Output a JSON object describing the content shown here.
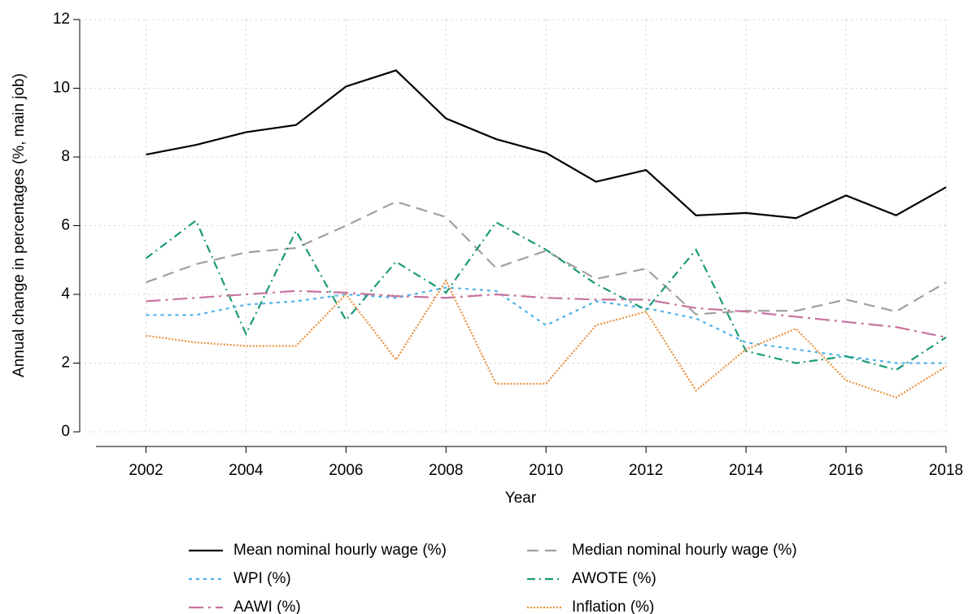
{
  "chart_data": {
    "type": "line",
    "x_label": "Year",
    "y_label": "Annual change in percentages (%, main job)",
    "x": [
      2002,
      2003,
      2004,
      2005,
      2006,
      2007,
      2008,
      2009,
      2010,
      2011,
      2012,
      2013,
      2014,
      2015,
      2016,
      2017,
      2018
    ],
    "xlim": [
      2001,
      2018
    ],
    "xticks": [
      2002,
      2004,
      2006,
      2008,
      2010,
      2012,
      2014,
      2016,
      2018
    ],
    "ylim": [
      0,
      12
    ],
    "yticks": [
      0,
      2,
      4,
      6,
      8,
      10,
      12
    ],
    "grid": true,
    "legend": "bottom",
    "series": [
      {
        "name": "Mean nominal hourly wage (%)",
        "color": "#000000",
        "dash": "solid",
        "values": [
          8.07,
          8.35,
          8.72,
          8.93,
          10.05,
          10.52,
          9.12,
          8.52,
          8.12,
          7.28,
          7.62,
          6.3,
          6.37,
          6.22,
          6.88,
          6.3,
          7.12
        ]
      },
      {
        "name": "Median nominal hourly wage (%)",
        "color": "#a0a0a0",
        "dash": "dashed",
        "values": [
          4.35,
          4.88,
          5.22,
          5.35,
          6.0,
          6.7,
          6.25,
          4.77,
          5.27,
          4.45,
          4.75,
          3.42,
          3.52,
          3.52,
          3.85,
          3.5,
          4.35
        ]
      },
      {
        "name": "WPI (%)",
        "color": "#4fb3e8",
        "dash": "dotted",
        "values": [
          3.4,
          3.4,
          3.7,
          3.8,
          4.0,
          3.9,
          4.2,
          4.1,
          3.1,
          3.8,
          3.6,
          3.3,
          2.6,
          2.4,
          2.2,
          2.0,
          2.0
        ]
      },
      {
        "name": "AWOTE (%)",
        "color": "#1a9a7a",
        "dash": "dashdot",
        "values": [
          5.05,
          6.15,
          2.85,
          5.85,
          3.25,
          4.95,
          4.05,
          6.1,
          5.3,
          4.3,
          3.55,
          5.3,
          2.35,
          2.0,
          2.2,
          1.8,
          2.75
        ]
      },
      {
        "name": "AAWI (%)",
        "color": "#c8739e",
        "dash": "longdashdot",
        "values": [
          3.8,
          3.9,
          4.0,
          4.1,
          4.05,
          3.95,
          3.9,
          4.0,
          3.9,
          3.85,
          3.85,
          3.6,
          3.5,
          3.35,
          3.2,
          3.05,
          2.75
        ]
      },
      {
        "name": "Inflation (%)",
        "color": "#e8913f",
        "dash": "finedot",
        "values": [
          2.8,
          2.6,
          2.5,
          2.5,
          4.0,
          2.1,
          4.4,
          1.4,
          1.4,
          3.1,
          3.5,
          1.2,
          2.4,
          3.0,
          1.5,
          1.0,
          1.9
        ]
      }
    ]
  }
}
